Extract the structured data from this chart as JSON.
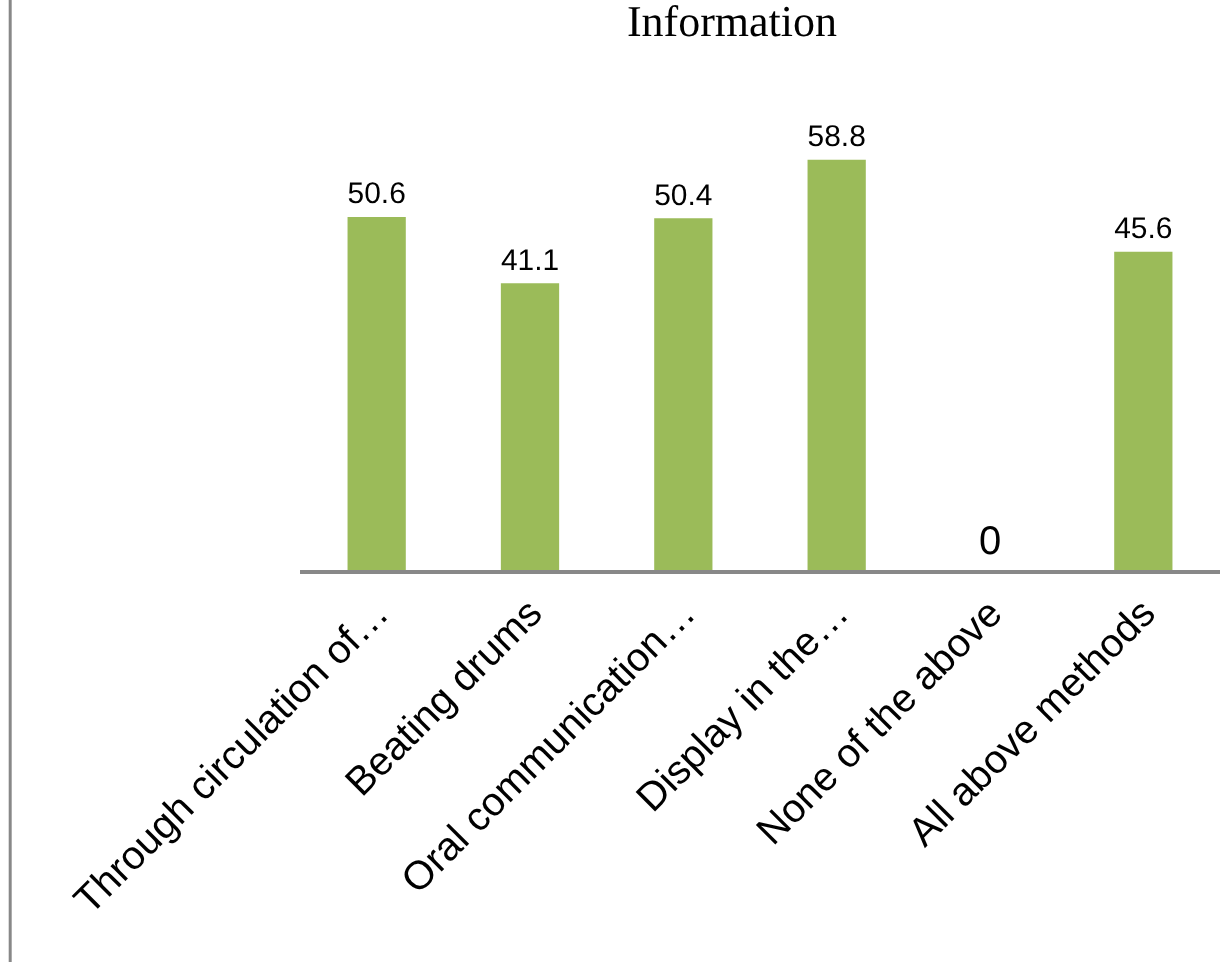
{
  "chart_data": {
    "type": "bar",
    "title": "Information",
    "categories": [
      "Through circulation of…",
      "Beating drums",
      "Oral communication…",
      "Display in the…",
      "None of the above",
      "All above methods"
    ],
    "values": [
      50.6,
      41.1,
      50.4,
      58.8,
      0,
      45.6
    ],
    "color": "#9bbb59",
    "data_labels": true,
    "grid": false,
    "legend": false
  }
}
